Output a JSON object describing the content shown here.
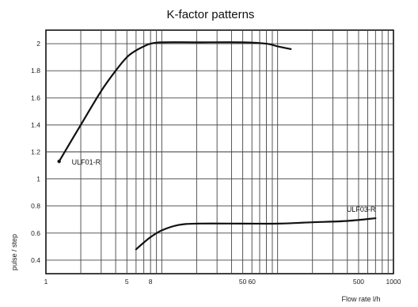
{
  "chart_data": {
    "type": "line",
    "title": "K-factor patterns",
    "xlabel": "Flow rate l/h",
    "ylabel": "pulse / step",
    "x_scale": "log",
    "xlim": [
      1,
      1000
    ],
    "ylim": [
      0.3,
      2.1
    ],
    "grid": true,
    "x_major_ticks": [
      1,
      5,
      8,
      50,
      60,
      500,
      1000
    ],
    "x_tick_labels": [
      "1",
      "5",
      "8",
      "50",
      "60",
      "500",
      "1000"
    ],
    "x_minor_ticks": [
      2,
      3,
      4,
      6,
      7,
      9,
      10,
      20,
      30,
      40,
      70,
      80,
      90,
      100,
      200,
      300,
      400,
      600,
      700,
      800,
      900
    ],
    "y_ticks": [
      0.4,
      0.6,
      0.8,
      1,
      1.2,
      1.4,
      1.6,
      1.8,
      2
    ],
    "y_tick_labels": [
      "0.4",
      "0.6",
      "0.8",
      "1",
      "1.2",
      "1.4",
      "1.6",
      "1.8",
      "2"
    ],
    "series": [
      {
        "name": "ULF01-R",
        "x": [
          1.3,
          2,
          3,
          4,
          5,
          6,
          7,
          8,
          10,
          20,
          50,
          80,
          100,
          130
        ],
        "y": [
          1.13,
          1.4,
          1.65,
          1.8,
          1.9,
          1.95,
          1.98,
          2.0,
          2.01,
          2.01,
          2.01,
          2.0,
          1.98,
          1.96
        ]
      },
      {
        "name": "ULF03-R",
        "x": [
          6,
          7,
          8,
          10,
          14,
          20,
          50,
          100,
          200,
          400,
          700
        ],
        "y": [
          0.48,
          0.53,
          0.57,
          0.62,
          0.66,
          0.67,
          0.67,
          0.67,
          0.68,
          0.69,
          0.71
        ]
      }
    ],
    "labels": [
      {
        "text": "ULF01-R",
        "at_series": 0
      },
      {
        "text": "ULF03-R",
        "at_series": 1
      }
    ],
    "line_color": "#111111",
    "grid_color": "#444444"
  }
}
